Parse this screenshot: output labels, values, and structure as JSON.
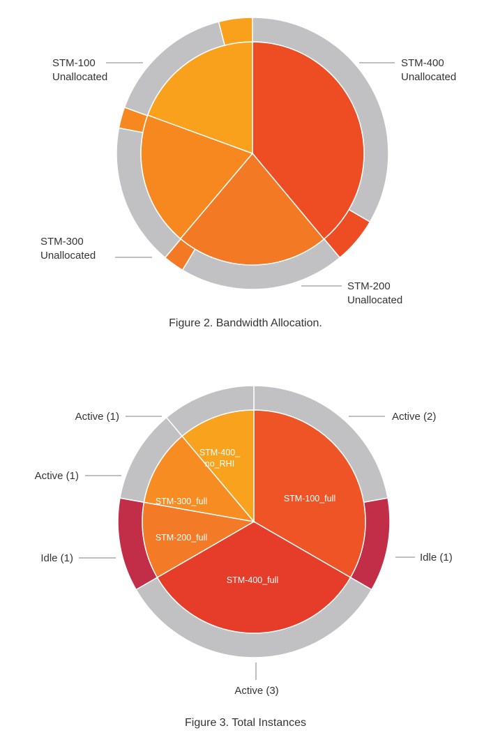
{
  "colors": {
    "ring_gray": "#c1c1c3",
    "stm400": "#ee4c22",
    "stm200": "#f47924",
    "stm300": "#f6881f",
    "stm100": "#f9a01d",
    "stm400_full": "#e63d2a",
    "stm100_full": "#ef5426",
    "stm200_full": "#f37a26",
    "stm300_full": "#f78c23",
    "stm400_no_rhi": "#f9a21d",
    "idle": "#c22d47",
    "separator": "#ffffff",
    "leader": "#9a9a9a"
  },
  "figures": {
    "fig2": {
      "caption": "Figure 2. Bandwidth Allocation.",
      "callouts": [
        {
          "name": "STM-400",
          "lines": [
            "STM-400",
            "Unallocated"
          ]
        },
        {
          "name": "STM-200",
          "lines": [
            "STM-200",
            "Unallocated"
          ]
        },
        {
          "name": "STM-300",
          "lines": [
            "STM-300",
            "Unallocated"
          ]
        },
        {
          "name": "STM-100",
          "lines": [
            "STM-100",
            "Unallocated"
          ]
        }
      ]
    },
    "fig3": {
      "caption": "Figure 3. Total Instances",
      "callouts": [
        {
          "name": "Active (2)",
          "lines": [
            "Active (2)"
          ]
        },
        {
          "name": "Idle (1) right",
          "lines": [
            "Idle (1)"
          ]
        },
        {
          "name": "Active (3)",
          "lines": [
            "Active (3)"
          ]
        },
        {
          "name": "Idle (1) left",
          "lines": [
            "Idle (1)"
          ]
        },
        {
          "name": "Active (1) mid",
          "lines": [
            "Active (1)"
          ]
        },
        {
          "name": "Active (1) top",
          "lines": [
            "Active (1)"
          ]
        }
      ]
    }
  },
  "chart_data": [
    {
      "type": "pie",
      "title": "Figure 2. Bandwidth Allocation.",
      "inner": {
        "labels": [
          "STM-400",
          "STM-200",
          "STM-300",
          "STM-100"
        ],
        "values": [
          38.9,
          22.2,
          19.4,
          19.4
        ],
        "colors": [
          "#ee4c22",
          "#f47924",
          "#f6881f",
          "#f9a01d"
        ]
      },
      "outer": {
        "labels": [
          "STM-400 Unallocated",
          "STM-400",
          "STM-200 Unallocated",
          "STM-200",
          "STM-300 Unallocated",
          "STM-300",
          "STM-100 Unallocated",
          "STM-100"
        ],
        "values": [
          33.4,
          5.5,
          19.7,
          2.5,
          16.9,
          2.5,
          15.5,
          4.0
        ],
        "colors": [
          "#c1c1c3",
          "#ee4c22",
          "#c1c1c3",
          "#f47924",
          "#c1c1c3",
          "#f6881f",
          "#c1c1c3",
          "#f9a01d"
        ]
      }
    },
    {
      "type": "pie",
      "title": "Figure 3. Total Instances",
      "inner": {
        "labels": [
          "STM-100_full",
          "STM-400_full",
          "STM-200_full",
          "STM-300_full",
          "STM-400_no_RHI"
        ],
        "values": [
          3,
          3,
          1,
          1,
          1
        ],
        "colors": [
          "#ef5426",
          "#e63d2a",
          "#f37a26",
          "#f78c23",
          "#f9a21d"
        ]
      },
      "outer": {
        "labels": [
          "Active (2)",
          "Idle (1)",
          "Active (3)",
          "Idle (1)",
          "Active (1)",
          "Active (1)"
        ],
        "values": [
          2,
          1,
          3,
          1,
          1,
          1
        ],
        "colors": [
          "#c1c1c3",
          "#c22d47",
          "#c1c1c3",
          "#c22d47",
          "#c1c1c3",
          "#c1c1c3"
        ]
      }
    }
  ]
}
